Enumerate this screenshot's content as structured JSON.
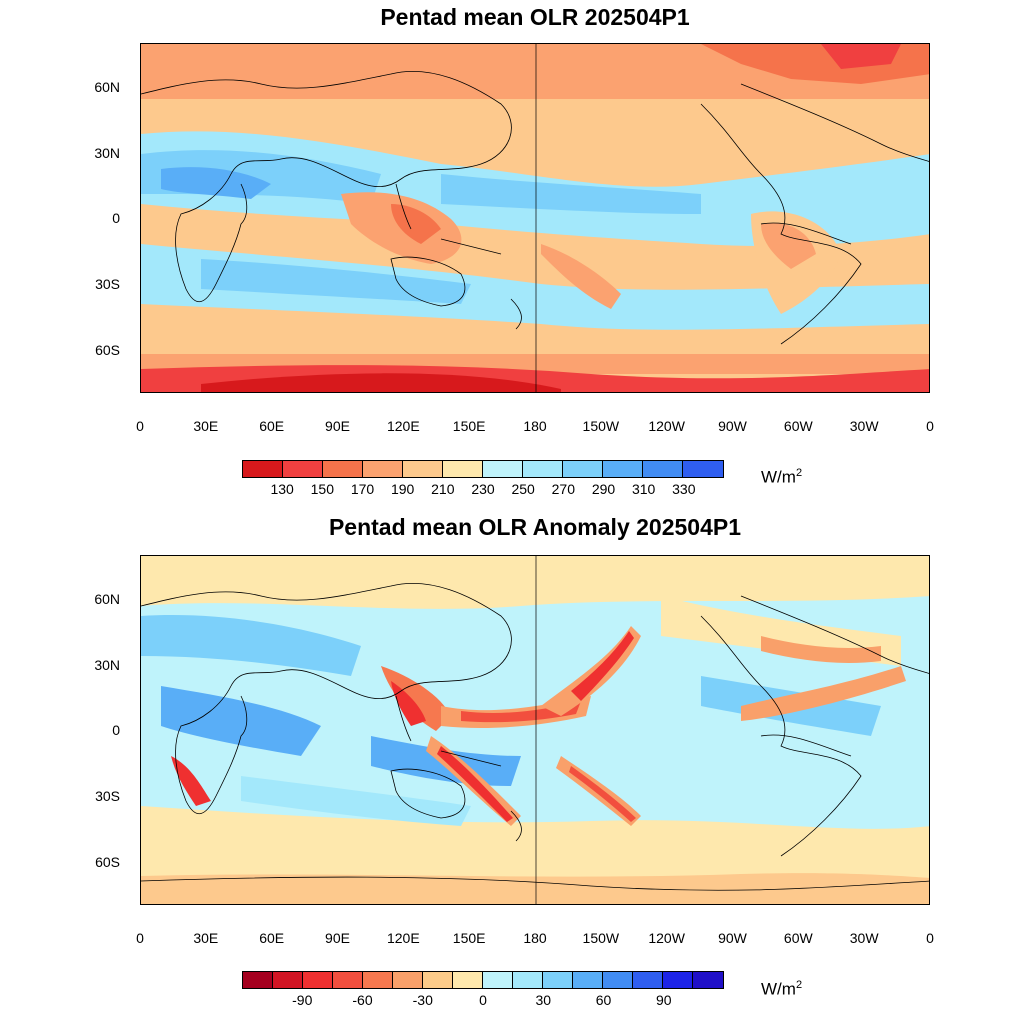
{
  "panels": [
    {
      "title": "Pentad mean OLR 202504P1",
      "lat_labels": [
        "60N",
        "30N",
        "0",
        "30S",
        "60S"
      ],
      "lon_labels": [
        "0",
        "30E",
        "60E",
        "90E",
        "120E",
        "150E",
        "180",
        "150W",
        "120W",
        "90W",
        "60W",
        "30W",
        "0"
      ],
      "colorbar": {
        "colors": [
          "#d7191c",
          "#f04040",
          "#f5734b",
          "#fba270",
          "#fdc98d",
          "#fee8ad",
          "#bff3fb",
          "#a3e8fb",
          "#7cd0fa",
          "#59aef7",
          "#418cf3",
          "#2f5ef0"
        ],
        "labels": [
          "130",
          "150",
          "170",
          "190",
          "210",
          "230",
          "250",
          "270",
          "290",
          "310",
          "330"
        ],
        "units": "W/m",
        "units_sup": "2"
      }
    },
    {
      "title": "Pentad mean OLR Anomaly 202504P1",
      "lat_labels": [
        "60N",
        "30N",
        "0",
        "30S",
        "60S"
      ],
      "lon_labels": [
        "0",
        "30E",
        "60E",
        "90E",
        "120E",
        "150E",
        "180",
        "150W",
        "120W",
        "90W",
        "60W",
        "30W",
        "0"
      ],
      "colorbar": {
        "colors": [
          "#a5001f",
          "#d21524",
          "#ef3030",
          "#f24f3e",
          "#f6784f",
          "#f9a06a",
          "#fccb8a",
          "#fee8ad",
          "#bff3fb",
          "#a3e8fb",
          "#7cd0fa",
          "#59aef7",
          "#418cf3",
          "#2f5ef0",
          "#1d24e8",
          "#2010c8"
        ],
        "labels": [
          "-90",
          "-60",
          "-30",
          "0",
          "30",
          "60",
          "90"
        ],
        "units": "W/m",
        "units_sup": "2"
      }
    }
  ]
}
